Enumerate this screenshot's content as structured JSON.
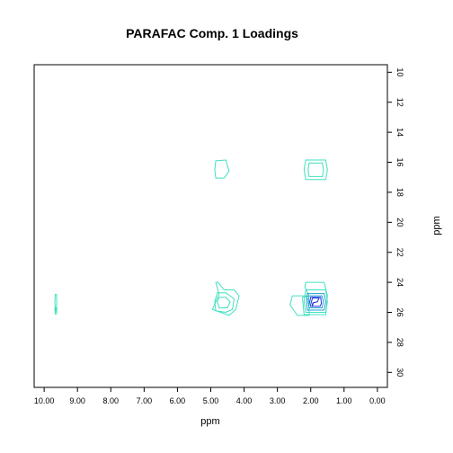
{
  "chart_data": {
    "type": "contour",
    "title": "PARAFAC Comp. 1 Loadings",
    "xlabel": "ppm",
    "ylabel": "ppm",
    "xlim": [
      10.3,
      -0.3
    ],
    "ylim": [
      9.5,
      31
    ],
    "x_ticks": [
      "10.00",
      "9.00",
      "8.00",
      "7.00",
      "6.00",
      "5.00",
      "4.00",
      "3.00",
      "2.00",
      "1.00",
      "0.00"
    ],
    "y_ticks": [
      10,
      12,
      14,
      16,
      18,
      20,
      22,
      24,
      26,
      28,
      30
    ],
    "grid": false,
    "colors": {
      "level_low": "#40e0c0",
      "level_mid": "#20a0d0",
      "level_high": "#2030e0"
    },
    "peaks": [
      {
        "x": 9.65,
        "y": 25.4,
        "intensity": "low"
      },
      {
        "x": 4.6,
        "y": 16.5,
        "intensity": "low"
      },
      {
        "x": 1.9,
        "y": 16.5,
        "intensity": "low"
      },
      {
        "x": 4.7,
        "y": 25.2,
        "intensity": "low"
      },
      {
        "x": 2.3,
        "y": 25.3,
        "intensity": "low"
      },
      {
        "x": 1.8,
        "y": 25.3,
        "intensity": "high"
      }
    ],
    "contours": [
      {
        "level": "low",
        "points": [
          [
            9.67,
            24.8
          ],
          [
            9.63,
            24.8
          ],
          [
            9.62,
            25.4
          ],
          [
            9.65,
            26.0
          ],
          [
            9.68,
            25.4
          ]
        ]
      },
      {
        "level": "low",
        "points": [
          [
            9.68,
            25.7
          ],
          [
            9.62,
            25.7
          ],
          [
            9.63,
            26.1
          ],
          [
            9.67,
            26.1
          ]
        ]
      },
      {
        "level": "low",
        "points": [
          [
            4.85,
            15.9
          ],
          [
            4.55,
            15.85
          ],
          [
            4.45,
            16.6
          ],
          [
            4.6,
            17.05
          ],
          [
            4.85,
            17.05
          ],
          [
            4.88,
            16.5
          ]
        ]
      },
      {
        "level": "low",
        "points": [
          [
            2.15,
            15.85
          ],
          [
            1.55,
            15.85
          ],
          [
            1.5,
            16.5
          ],
          [
            1.55,
            17.15
          ],
          [
            2.15,
            17.15
          ],
          [
            2.2,
            16.5
          ]
        ]
      },
      {
        "level": "low",
        "points": [
          [
            2.05,
            16.05
          ],
          [
            1.65,
            16.05
          ],
          [
            1.62,
            16.5
          ],
          [
            1.65,
            16.95
          ],
          [
            2.05,
            16.95
          ],
          [
            2.08,
            16.5
          ]
        ]
      },
      {
        "level": "low",
        "points": [
          [
            4.85,
            24.0
          ],
          [
            4.75,
            24.8
          ],
          [
            4.95,
            25.8
          ],
          [
            4.45,
            26.2
          ],
          [
            4.25,
            25.8
          ],
          [
            4.15,
            24.9
          ],
          [
            4.3,
            24.5
          ],
          [
            4.6,
            24.5
          ],
          [
            4.78,
            24.0
          ]
        ]
      },
      {
        "level": "low",
        "points": [
          [
            4.8,
            24.7
          ],
          [
            4.55,
            24.7
          ],
          [
            4.3,
            25.1
          ],
          [
            4.35,
            25.8
          ],
          [
            4.55,
            26.0
          ],
          [
            4.85,
            25.9
          ],
          [
            4.88,
            25.3
          ]
        ]
      },
      {
        "level": "low",
        "points": [
          [
            4.75,
            25.0
          ],
          [
            4.55,
            25.0
          ],
          [
            4.42,
            25.3
          ],
          [
            4.5,
            25.7
          ],
          [
            4.75,
            25.7
          ],
          [
            4.8,
            25.3
          ]
        ]
      },
      {
        "level": "low",
        "points": [
          [
            2.55,
            24.9
          ],
          [
            2.15,
            24.9
          ],
          [
            2.05,
            25.3
          ],
          [
            2.05,
            26.2
          ],
          [
            2.4,
            26.2
          ],
          [
            2.62,
            25.5
          ]
        ]
      },
      {
        "level": "low",
        "points": [
          [
            2.15,
            24.0
          ],
          [
            1.6,
            24.0
          ],
          [
            1.5,
            24.9
          ],
          [
            1.55,
            26.15
          ],
          [
            2.2,
            26.15
          ],
          [
            2.25,
            25.0
          ],
          [
            2.05,
            24.9
          ],
          [
            2.18,
            24.3
          ]
        ]
      },
      {
        "level": "low",
        "points": [
          [
            2.15,
            24.5
          ],
          [
            1.55,
            24.5
          ],
          [
            1.5,
            25.3
          ],
          [
            1.55,
            26.0
          ],
          [
            2.15,
            26.0
          ],
          [
            2.2,
            25.3
          ]
        ]
      },
      {
        "level": "mid",
        "points": [
          [
            2.1,
            24.75
          ],
          [
            1.6,
            24.75
          ],
          [
            1.55,
            25.3
          ],
          [
            1.6,
            25.85
          ],
          [
            2.1,
            25.85
          ],
          [
            2.13,
            25.3
          ]
        ]
      },
      {
        "level": "mid",
        "points": [
          [
            2.05,
            24.9
          ],
          [
            1.66,
            24.9
          ],
          [
            1.62,
            25.3
          ],
          [
            1.66,
            25.7
          ],
          [
            2.05,
            25.7
          ],
          [
            2.08,
            25.3
          ]
        ]
      },
      {
        "level": "high",
        "points": [
          [
            2.0,
            25.0
          ],
          [
            1.7,
            25.0
          ],
          [
            1.68,
            25.4
          ],
          [
            1.72,
            25.6
          ],
          [
            2.0,
            25.6
          ],
          [
            2.03,
            25.3
          ]
        ]
      },
      {
        "level": "high",
        "points": [
          [
            1.95,
            25.05
          ],
          [
            1.75,
            25.05
          ],
          [
            1.8,
            25.3
          ],
          [
            1.92,
            25.35
          ],
          [
            1.95,
            25.55
          ],
          [
            1.98,
            25.3
          ]
        ]
      }
    ]
  }
}
